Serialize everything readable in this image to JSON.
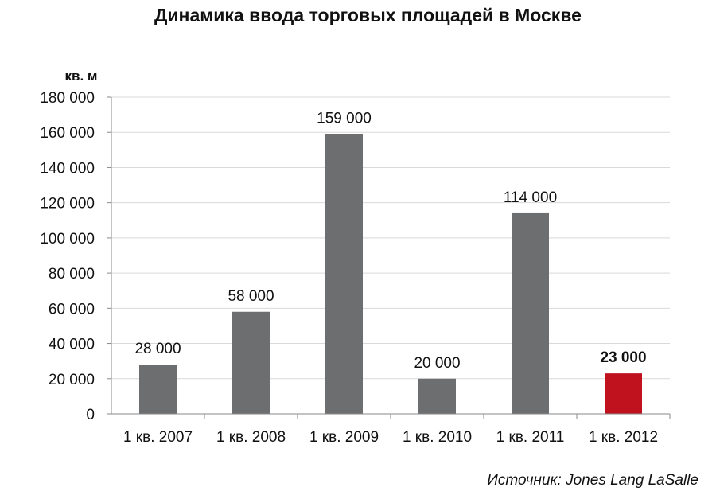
{
  "chart_data": {
    "type": "bar",
    "title": "Динамика ввода торговых площадей в Москве",
    "ylabel": "кв. м",
    "xlabel": "",
    "categories": [
      "1 кв. 2007",
      "1 кв. 2008",
      "1 кв. 2009",
      "1 кв. 2010",
      "1 кв. 2011",
      "1 кв. 2012"
    ],
    "values": [
      28000,
      58000,
      159000,
      20000,
      114000,
      23000
    ],
    "value_labels": [
      "28 000",
      "58 000",
      "159 000",
      "20 000",
      "114 000",
      "23 000"
    ],
    "ylim": [
      0,
      180000
    ],
    "yticks": [
      0,
      20000,
      40000,
      60000,
      80000,
      100000,
      120000,
      140000,
      160000,
      180000
    ],
    "ytick_labels": [
      "0",
      "20 000",
      "40 000",
      "60 000",
      "80 000",
      "100 000",
      "120 000",
      "140 000",
      "160 000",
      "180 000"
    ],
    "grid": true,
    "bar_color": "#6d6e70",
    "highlight_index": 5,
    "highlight_color": "#c0111f",
    "source": "Источник: Jones Lang LaSalle"
  }
}
